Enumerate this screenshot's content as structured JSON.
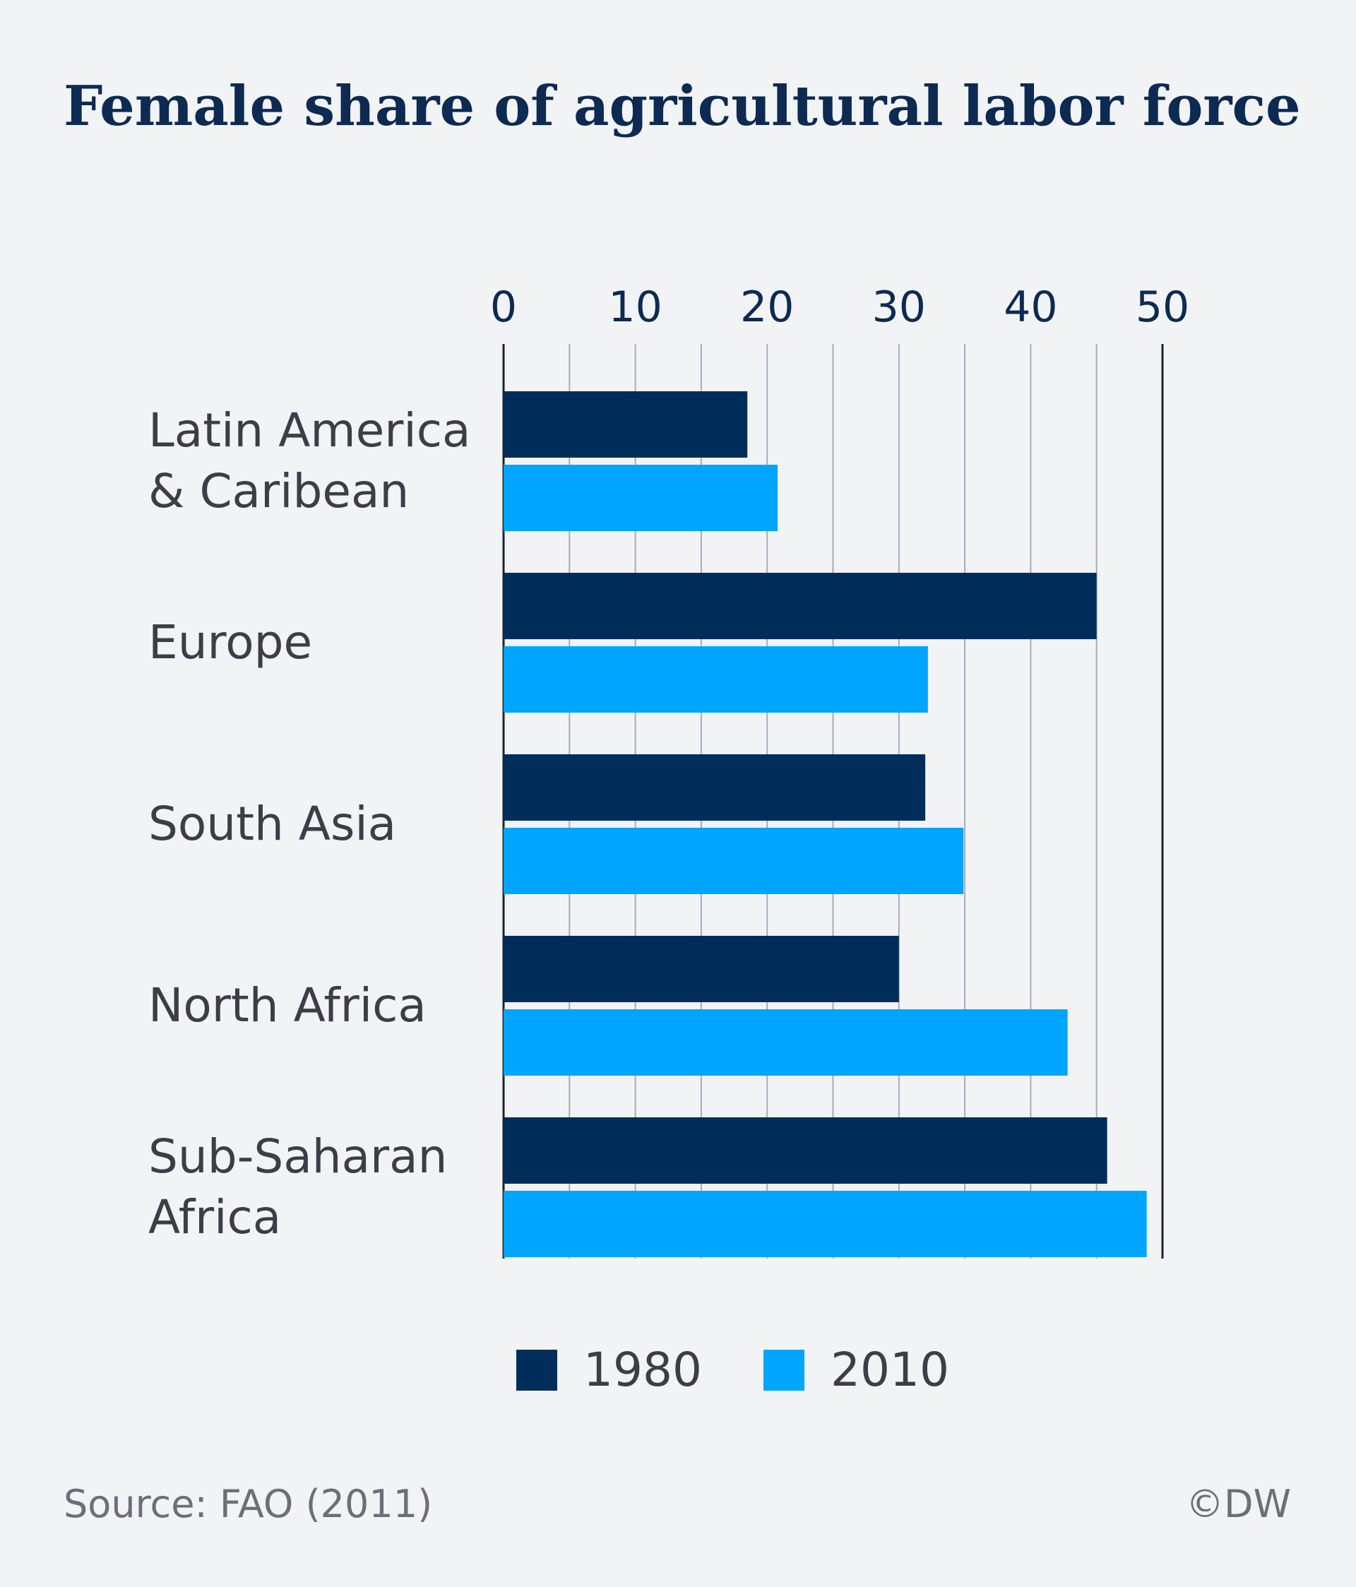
{
  "chart_data": {
    "type": "bar",
    "orientation": "horizontal",
    "title": "Female share of agricultural labor force",
    "categories": [
      [
        "Latin America",
        "& Caribean"
      ],
      [
        "Europe"
      ],
      [
        "South Asia"
      ],
      [
        "North Africa"
      ],
      [
        "Sub-Saharan",
        "Africa"
      ]
    ],
    "series": [
      {
        "name": "1980",
        "color": "#002d5a",
        "values": [
          18.5,
          45,
          32,
          30,
          45.8
        ]
      },
      {
        "name": "2010",
        "color": "#00a5ff",
        "values": [
          20.8,
          32.2,
          34.9,
          42.8,
          48.8
        ]
      }
    ],
    "xlim": [
      0,
      50
    ],
    "xticks": [
      0,
      10,
      20,
      30,
      40,
      50
    ],
    "grid": true,
    "legend": "bottom"
  },
  "footer": {
    "source": "Source: FAO (2011)",
    "credit": "©DW"
  }
}
